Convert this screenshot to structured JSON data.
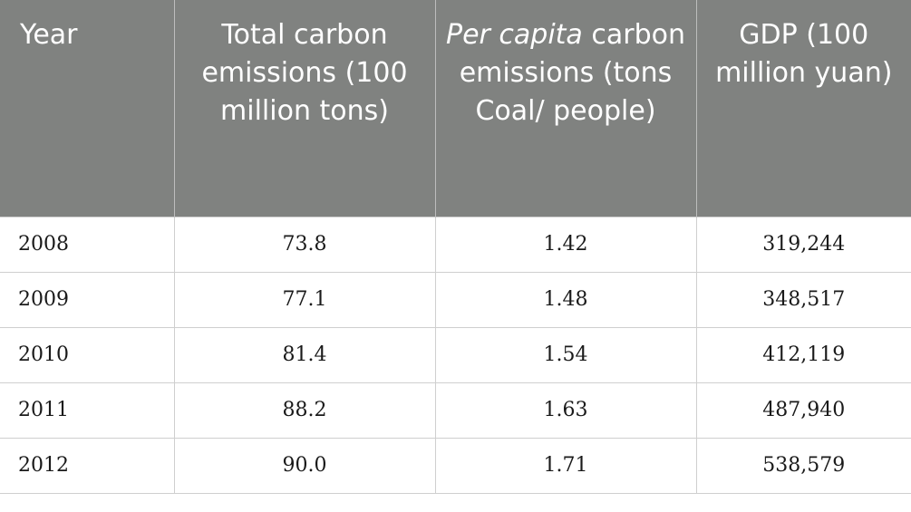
{
  "table": {
    "headers": {
      "year": "Year",
      "total": "Total carbon emissions (100 million tons)",
      "per_capita_italic": "Per capita",
      "per_capita_rest": "carbon emissions (tons Coal/ people)",
      "gdp": "GDP (100 million yuan)"
    },
    "rows": [
      {
        "year": "2008",
        "total": "73.8",
        "per_capita": "1.42",
        "gdp": "319,244"
      },
      {
        "year": "2009",
        "total": "77.1",
        "per_capita": "1.48",
        "gdp": "348,517"
      },
      {
        "year": "2010",
        "total": "81.4",
        "per_capita": "1.54",
        "gdp": "412,119"
      },
      {
        "year": "2011",
        "total": "88.2",
        "per_capita": "1.63",
        "gdp": "487,940"
      },
      {
        "year": "2012",
        "total": "90.0",
        "per_capita": "1.71",
        "gdp": "538,579"
      }
    ]
  },
  "colors": {
    "header_bg": "#808280",
    "header_text": "#ffffff",
    "grid": "#cfcfcf"
  }
}
